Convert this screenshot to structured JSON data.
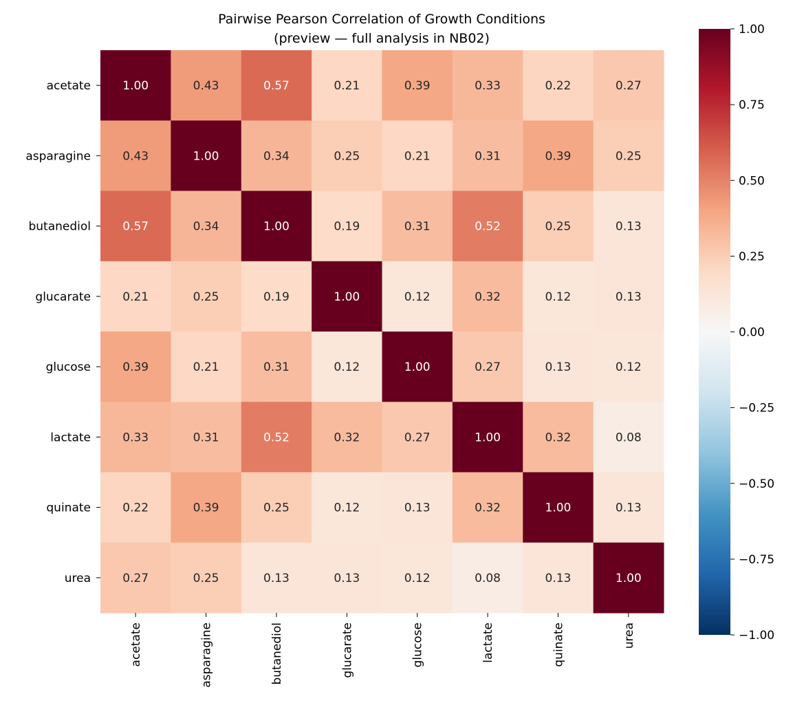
{
  "chart_data": {
    "type": "heatmap",
    "title": "Pairwise Pearson Correlation of Growth Conditions",
    "subtitle": "(preview — full analysis in NB02)",
    "rows": [
      "acetate",
      "asparagine",
      "butanediol",
      "glucarate",
      "glucose",
      "lactate",
      "quinate",
      "urea"
    ],
    "columns": [
      "acetate",
      "asparagine",
      "butanediol",
      "glucarate",
      "glucose",
      "lactate",
      "quinate",
      "urea"
    ],
    "values": [
      [
        1.0,
        0.43,
        0.57,
        0.21,
        0.39,
        0.33,
        0.22,
        0.27
      ],
      [
        0.43,
        1.0,
        0.34,
        0.25,
        0.21,
        0.31,
        0.39,
        0.25
      ],
      [
        0.57,
        0.34,
        1.0,
        0.19,
        0.31,
        0.52,
        0.25,
        0.13
      ],
      [
        0.21,
        0.25,
        0.19,
        1.0,
        0.12,
        0.32,
        0.12,
        0.13
      ],
      [
        0.39,
        0.21,
        0.31,
        0.12,
        1.0,
        0.27,
        0.13,
        0.12
      ],
      [
        0.33,
        0.31,
        0.52,
        0.32,
        0.27,
        1.0,
        0.32,
        0.08
      ],
      [
        0.22,
        0.39,
        0.25,
        0.12,
        0.13,
        0.32,
        1.0,
        0.13
      ],
      [
        0.27,
        0.25,
        0.13,
        0.13,
        0.12,
        0.08,
        0.13,
        1.0
      ]
    ],
    "colormap": "RdBu_r",
    "vlim": [
      -1,
      1
    ],
    "colorbar_ticks": [
      "1.00",
      "0.75",
      "0.50",
      "0.25",
      "0.00",
      "−0.25",
      "−0.50",
      "−0.75",
      "−1.00"
    ],
    "colorbar_tick_values": [
      1,
      0.75,
      0.5,
      0.25,
      0,
      -0.25,
      -0.5,
      -0.75,
      -1
    ],
    "annotation_format": "0.00",
    "legend": "colorbar-right"
  }
}
